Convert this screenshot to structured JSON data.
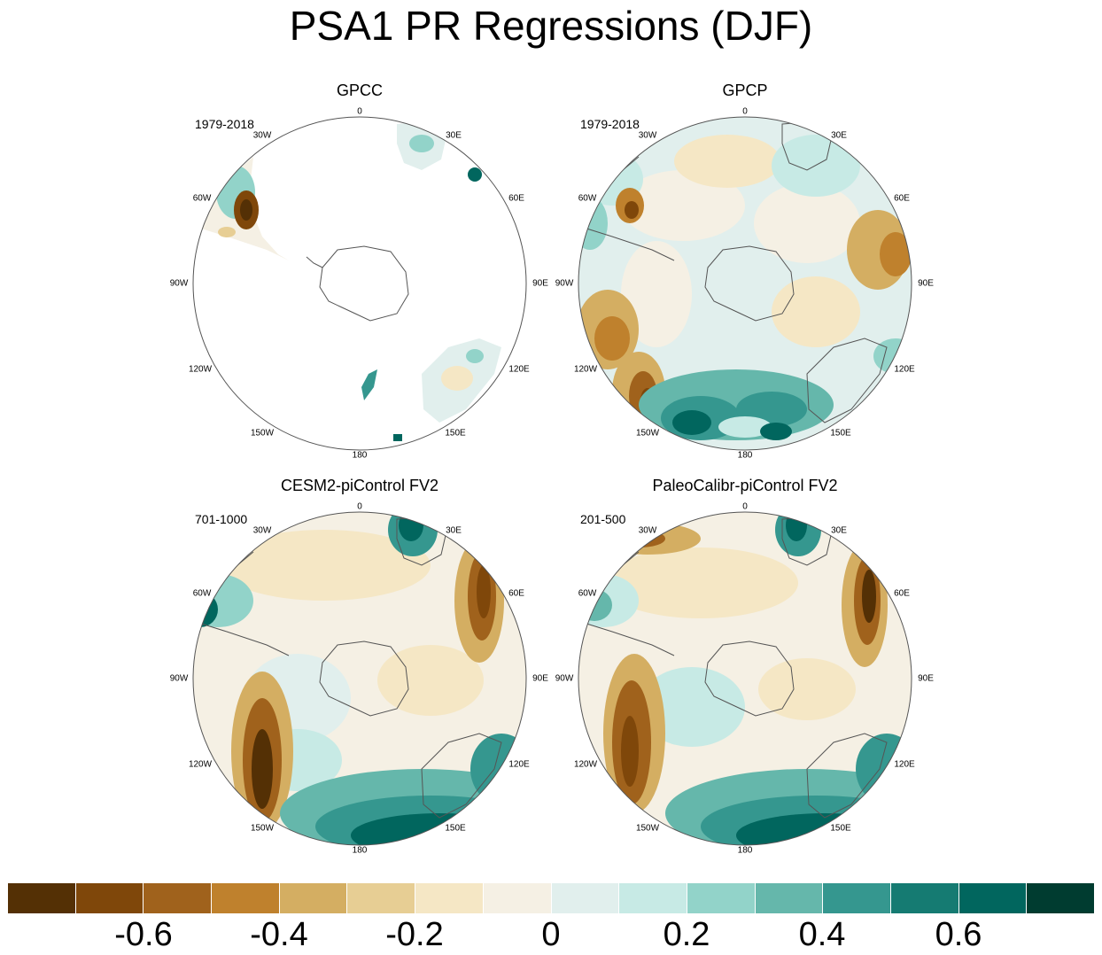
{
  "title": "PSA1 PR Regressions (DJF)",
  "panels": [
    {
      "title": "GPCC",
      "period": "1979-2018"
    },
    {
      "title": "GPCP",
      "period": "1979-2018"
    },
    {
      "title": "CESM2-piControl FV2",
      "period": "701-1000"
    },
    {
      "title": "PaleoCalibr-piControl FV2",
      "period": "201-500"
    }
  ],
  "longitude_labels": {
    "top": "0",
    "l30w": "30W",
    "r30e": "30E",
    "l60w": "60W",
    "r60e": "60E",
    "l90w": "90W",
    "r90e": "90E",
    "l120w": "120W",
    "r120e": "120E",
    "l150w": "150W",
    "r150e": "150E",
    "bottom": "180"
  },
  "colorbar": {
    "colors": [
      "#543005",
      "#7f470a",
      "#a0621c",
      "#bf812d",
      "#d4ae62",
      "#e7ce94",
      "#f5e7c5",
      "#f5f0e4",
      "#e1efed",
      "#c7eae5",
      "#92d3c9",
      "#65b7ab",
      "#35978f",
      "#157b72",
      "#01665e",
      "#003c30"
    ],
    "tick_labels": [
      "-0.6",
      "-0.4",
      "-0.2",
      "0",
      "0.2",
      "0.4",
      "0.6"
    ]
  },
  "colors": {
    "brown": "#7f470a",
    "teal": "#01665e",
    "neutral": "#f5f0e4"
  }
}
